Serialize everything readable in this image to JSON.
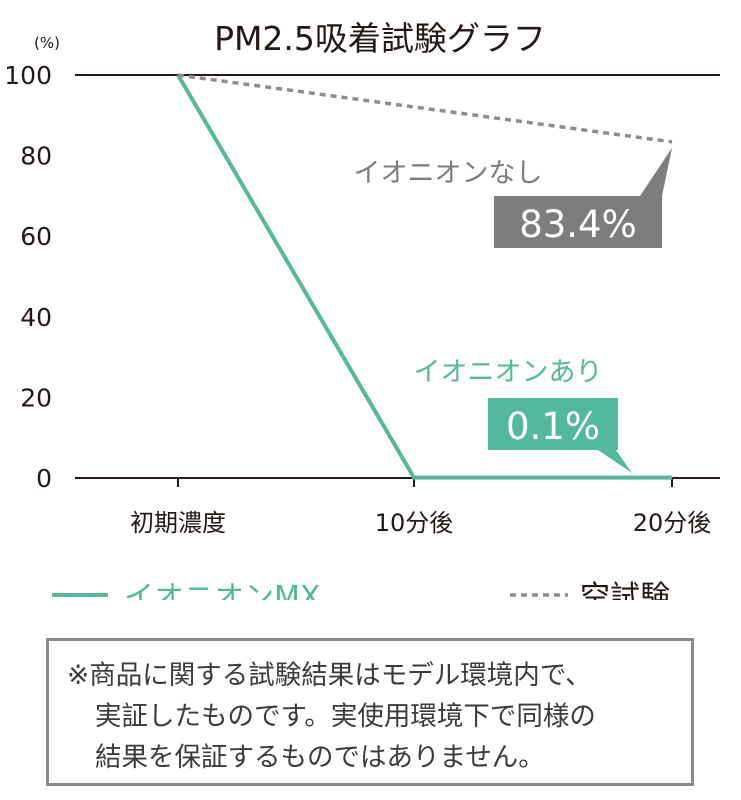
{
  "chart_data": {
    "type": "line",
    "title": "PM2.5吸着試験グラフ",
    "ylabel": "(%)",
    "ylim": [
      0,
      100
    ],
    "yticks": [
      0,
      20,
      40,
      60,
      80,
      100
    ],
    "categories": [
      "初期濃度",
      "10分後",
      "20分後"
    ],
    "series": [
      {
        "name": "イオニオンMX",
        "style": "solid",
        "color": "#52b99d",
        "values": [
          100,
          0.1,
          0.1
        ]
      },
      {
        "name": "空試験",
        "style": "dotted",
        "color": "#8c8c8c",
        "values": [
          100,
          null,
          83.4
        ]
      }
    ],
    "annotations": [
      {
        "text": "イオニオンなし",
        "value_label": "83.4%",
        "color": "#7d7d7d",
        "box_color": "#7d7d7d"
      },
      {
        "text": "イオニオンあり",
        "value_label": "0.1%",
        "color": "#52b99d",
        "box_color": "#52b99d"
      }
    ],
    "legend_position": "bottom"
  },
  "note": {
    "lines": [
      "※商品に関する試験結果はモデル環境内で、",
      "実証したものです。実使用環境下で同様の",
      "結果を保証するものではありません。"
    ]
  }
}
